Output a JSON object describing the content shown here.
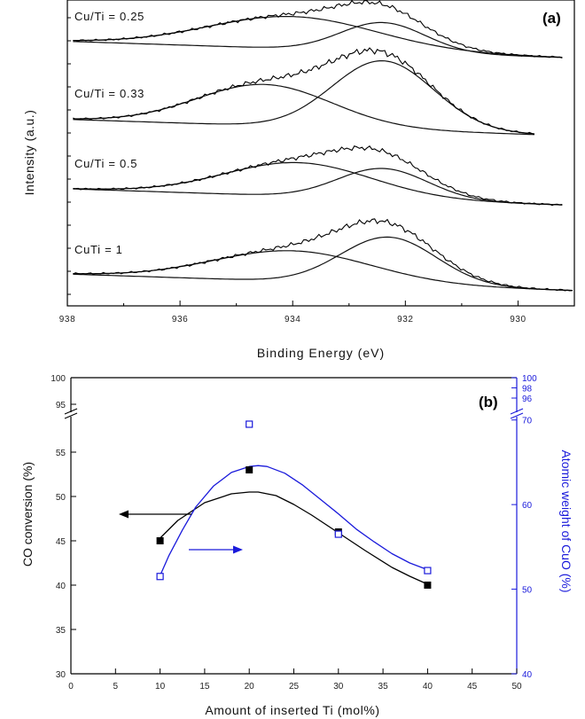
{
  "chart_data": [
    {
      "type": "line",
      "panel_label": "(a)",
      "xlabel": "Binding Energy (eV)",
      "ylabel": "Intensity (a.u.)",
      "xlim": [
        938,
        929
      ],
      "x_reversed": true,
      "x_ticks": [
        938,
        936,
        934,
        932,
        930
      ],
      "grid": false,
      "series": [
        {
          "name": "Cu/Ti = 0.25",
          "baseline": 0.812,
          "curve_range": [
            937.9,
            929.2
          ],
          "peaks": [
            {
              "center": 934.0,
              "height": 0.105,
              "width": 1.5
            },
            {
              "center": 932.4,
              "height": 0.095,
              "width": 0.75
            }
          ]
        },
        {
          "name": "Cu/Ti = 0.33",
          "baseline": 0.56,
          "curve_range": [
            937.9,
            929.7
          ],
          "peaks": [
            {
              "center": 934.5,
              "height": 0.135,
              "width": 1.2
            },
            {
              "center": 932.4,
              "height": 0.225,
              "width": 0.9
            }
          ]
        },
        {
          "name": "Cu/Ti = 0.5",
          "baseline": 0.33,
          "curve_range": [
            937.9,
            929.2
          ],
          "peaks": [
            {
              "center": 933.9,
              "height": 0.11,
              "width": 1.3
            },
            {
              "center": 932.4,
              "height": 0.1,
              "width": 0.8
            }
          ]
        },
        {
          "name": "CuTi = 1",
          "baseline": 0.05,
          "curve_range": [
            937.9,
            929.0
          ],
          "peaks": [
            {
              "center": 934.0,
              "height": 0.1,
              "width": 1.4
            },
            {
              "center": 932.3,
              "height": 0.155,
              "width": 0.85
            }
          ]
        }
      ]
    },
    {
      "type": "scatter",
      "panel_label": "(b)",
      "xlabel": "Amount of inserted Ti (mol%)",
      "ylabel": "CO conversion (%)",
      "y2label": "Atomic weight of CuO (%)",
      "xlim": [
        0,
        50
      ],
      "x_ticks": [
        0,
        5,
        10,
        15,
        20,
        25,
        30,
        35,
        40,
        45,
        50
      ],
      "ylim": [
        30,
        100
      ],
      "y_broken": true,
      "y_ticks": [
        30,
        35,
        40,
        45,
        50,
        55,
        95,
        100
      ],
      "y2lim": [
        40,
        100
      ],
      "y2_broken": true,
      "y2_ticks": [
        40,
        50,
        60,
        70,
        96,
        98,
        100
      ],
      "colors": {
        "co": "#000000",
        "cuo": "#1a1adb"
      },
      "series": [
        {
          "name": "CO conversion",
          "axis": "left",
          "marker": "filled-square",
          "x": [
            10,
            20,
            30,
            40
          ],
          "y": [
            45,
            53,
            46,
            40
          ],
          "fit_x": [
            10,
            12,
            15,
            18,
            20,
            21,
            23,
            25,
            27,
            30,
            33,
            36,
            38,
            40
          ],
          "fit_y": [
            45.3,
            47.3,
            49.3,
            50.3,
            50.5,
            50.5,
            50.1,
            49.1,
            47.9,
            45.9,
            43.9,
            42.0,
            41.0,
            40.1
          ]
        },
        {
          "name": "Atomic weight of CuO",
          "axis": "right",
          "marker": "open-square",
          "x": [
            10,
            20,
            30,
            40
          ],
          "y": [
            51.5,
            69.5,
            56.5,
            52.2
          ],
          "fit_x": [
            10,
            11,
            12.5,
            14,
            16,
            18,
            20,
            21,
            22,
            24,
            26,
            28,
            30,
            32,
            34,
            36,
            38,
            40
          ],
          "fit_y": [
            51.6,
            54.0,
            57.0,
            59.7,
            62.2,
            63.8,
            64.5,
            64.6,
            64.5,
            63.7,
            62.3,
            60.6,
            58.9,
            57.1,
            55.6,
            54.2,
            53.1,
            52.3
          ]
        }
      ]
    }
  ]
}
